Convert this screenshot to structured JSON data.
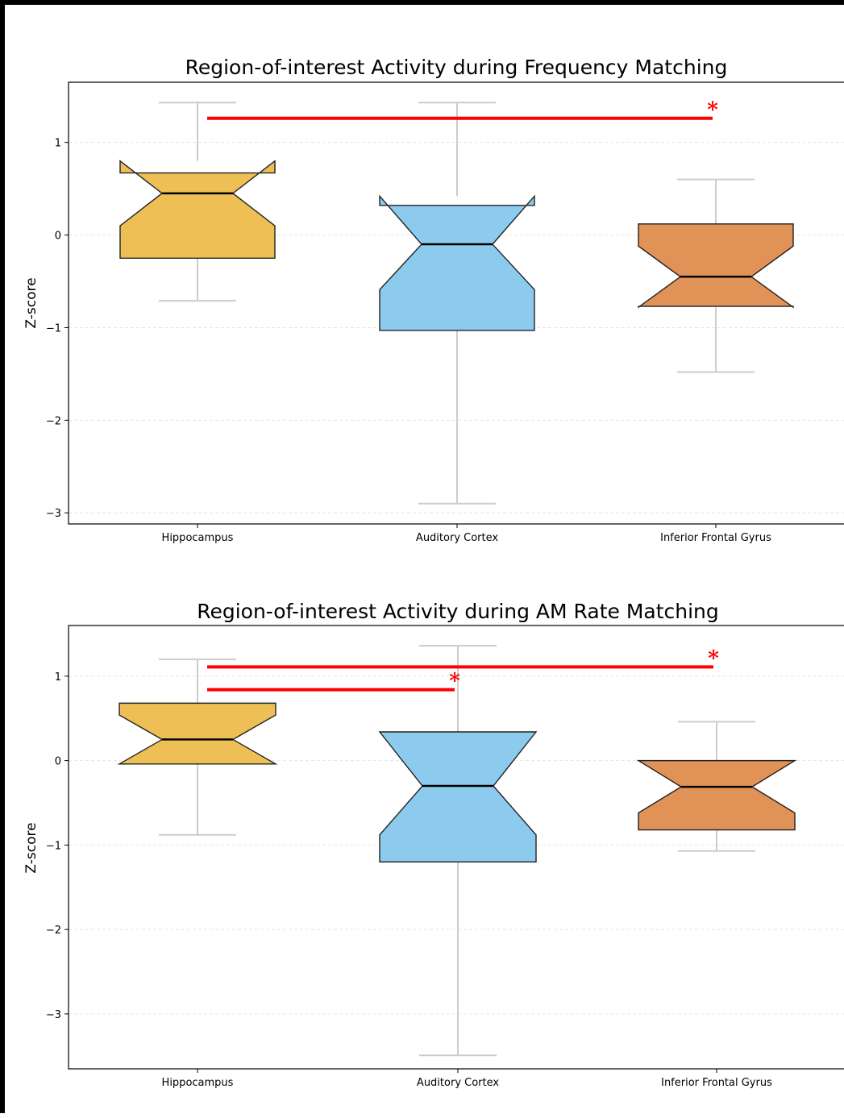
{
  "colors": {
    "hippocampus": "#EDBF55",
    "auditory_cortex": "#8DCBEE",
    "inferior_frontal_gyrus": "#E09257",
    "whisker": "#CCCCCC",
    "significance": "#FF0000",
    "grid": "#E6E6E6"
  },
  "chart_data": [
    {
      "type": "boxplot",
      "notched": true,
      "title": "Region-of-interest Activity during Frequency Matching",
      "ylabel": "Z-score",
      "xlabel": "",
      "ylim": [
        -3.12,
        1.65
      ],
      "yticks": [
        -3,
        -2,
        -1,
        0,
        1
      ],
      "ytick_labels": [
        "−3",
        "−2",
        "−1",
        "0",
        "1"
      ],
      "grid": "horizontal dashed",
      "categories": [
        "Hippocampus",
        "Auditory Cortex",
        "Inferior Frontal Gyrus"
      ],
      "boxes": [
        {
          "whislo": -0.71,
          "q1": -0.25,
          "med": 0.45,
          "q3": 0.67,
          "whishi": 1.43,
          "notch_lo": 0.1,
          "notch_hi": 0.8
        },
        {
          "whislo": -2.9,
          "q1": -1.03,
          "med": -0.1,
          "q3": 0.32,
          "whishi": 1.43,
          "notch_lo": -0.59,
          "notch_hi": 0.42
        },
        {
          "whislo": -1.48,
          "q1": -0.77,
          "med": -0.45,
          "q3": 0.12,
          "whishi": 0.6,
          "notch_lo": -0.78,
          "notch_hi": -0.12
        }
      ],
      "significance": [
        {
          "from": 0,
          "to": 2,
          "y": 1.26,
          "label": "*"
        }
      ]
    },
    {
      "type": "boxplot",
      "notched": true,
      "title": "Region-of-interest Activity during AM Rate Matching",
      "ylabel": "Z-score",
      "xlabel": "",
      "ylim": [
        -3.65,
        1.6
      ],
      "yticks": [
        -3,
        -2,
        -1,
        0,
        1
      ],
      "ytick_labels": [
        "−3",
        "−2",
        "−1",
        "0",
        "1"
      ],
      "grid": "horizontal dashed",
      "categories": [
        "Hippocampus",
        "Auditory Cortex",
        "Inferior Frontal Gyrus"
      ],
      "boxes": [
        {
          "whislo": -0.88,
          "q1": -0.04,
          "med": 0.25,
          "q3": 0.68,
          "whishi": 1.2,
          "notch_lo": -0.04,
          "notch_hi": 0.54
        },
        {
          "whislo": -3.49,
          "q1": -1.2,
          "med": -0.3,
          "q3": 0.34,
          "whishi": 1.36,
          "notch_lo": -0.88,
          "notch_hi": 0.34
        },
        {
          "whislo": -1.07,
          "q1": -0.82,
          "med": -0.31,
          "q3": 0.0,
          "whishi": 0.46,
          "notch_lo": -0.62,
          "notch_hi": 0.0
        }
      ],
      "significance": [
        {
          "from": 0,
          "to": 2,
          "y": 1.11,
          "label": "*"
        },
        {
          "from": 0,
          "to": 1,
          "y": 0.84,
          "label": "*"
        }
      ]
    }
  ]
}
